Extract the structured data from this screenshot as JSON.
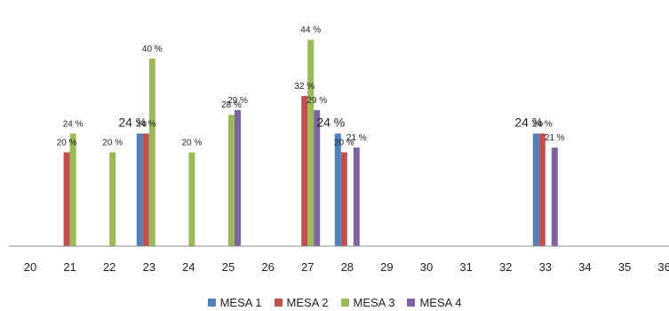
{
  "chart_data": {
    "type": "bar",
    "categories": [
      "20",
      "21",
      "22",
      "23",
      "24",
      "25",
      "26",
      "27",
      "28",
      "29",
      "30",
      "31",
      "32",
      "33",
      "34",
      "35",
      "36"
    ],
    "ylim": [
      0,
      50
    ],
    "grid": false,
    "legend_position": "bottom",
    "series": [
      {
        "name": "MESA 1",
        "color": "#4F81BD",
        "values": [
          null,
          null,
          null,
          24,
          null,
          null,
          null,
          null,
          24,
          null,
          null,
          null,
          null,
          24,
          null,
          null,
          null
        ],
        "labels": [
          null,
          null,
          null,
          "24 %",
          null,
          null,
          null,
          null,
          "24 %",
          null,
          null,
          null,
          null,
          "24 %",
          null,
          null,
          null
        ]
      },
      {
        "name": "MESA 2",
        "color": "#C0504D",
        "values": [
          null,
          20,
          null,
          24,
          null,
          null,
          null,
          32,
          20,
          null,
          null,
          null,
          null,
          24,
          null,
          null,
          null
        ],
        "labels": [
          null,
          "20 %",
          null,
          "24 %",
          null,
          null,
          null,
          "32 %",
          "20 %",
          null,
          null,
          null,
          null,
          "24 %",
          null,
          null,
          null
        ]
      },
      {
        "name": "MESA 3",
        "color": "#9BBB59",
        "values": [
          null,
          24,
          20,
          40,
          20,
          28,
          null,
          44,
          null,
          null,
          null,
          null,
          null,
          null,
          null,
          null,
          null
        ],
        "labels": [
          null,
          "24 %",
          "20 %",
          "40 %",
          "20 %",
          "28 %",
          null,
          "44 %",
          null,
          null,
          null,
          null,
          null,
          null,
          null,
          null,
          null
        ]
      },
      {
        "name": "MESA 4",
        "color": "#8064A2",
        "values": [
          null,
          null,
          null,
          null,
          null,
          29,
          null,
          29,
          21,
          null,
          null,
          null,
          null,
          21,
          null,
          null,
          null
        ],
        "labels": [
          null,
          null,
          null,
          null,
          null,
          "29 %",
          null,
          "29 %",
          "21 %",
          null,
          null,
          null,
          null,
          "21 %",
          null,
          null,
          null
        ]
      }
    ]
  }
}
